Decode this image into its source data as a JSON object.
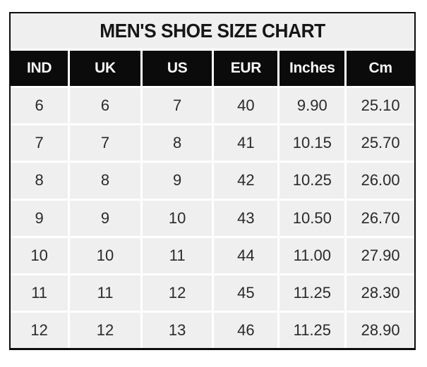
{
  "title": "MEN'S SHOE SIZE CHART",
  "colors": {
    "page_background": "#ffffff",
    "outer_border": "#0c0c0c",
    "title_band_background": "#efefef",
    "header_background": "#0b0b0b",
    "header_text": "#f7f7f7",
    "cell_background": "#efefef",
    "cell_text": "#2a2a2a",
    "gridline": "#ffffff"
  },
  "chart_data": {
    "type": "table",
    "title": "MEN'S SHOE SIZE CHART",
    "columns": [
      "IND",
      "UK",
      "US",
      "EUR",
      "Inches",
      "Cm"
    ],
    "rows": [
      [
        "6",
        "6",
        "7",
        "40",
        "9.90",
        "25.10"
      ],
      [
        "7",
        "7",
        "8",
        "41",
        "10.15",
        "25.70"
      ],
      [
        "8",
        "8",
        "9",
        "42",
        "10.25",
        "26.00"
      ],
      [
        "9",
        "9",
        "10",
        "43",
        "10.50",
        "26.70"
      ],
      [
        "10",
        "10",
        "11",
        "44",
        "11.00",
        "27.90"
      ],
      [
        "11",
        "11",
        "12",
        "45",
        "11.25",
        "28.30"
      ],
      [
        "12",
        "12",
        "13",
        "46",
        "11.25",
        "28.90"
      ]
    ],
    "layout_hints": {
      "header_style": "black background, white bold text",
      "body_style": "light gray cells, white gridlines",
      "column_width_ratio": [
        84,
        103,
        102,
        93,
        95,
        99
      ]
    }
  }
}
